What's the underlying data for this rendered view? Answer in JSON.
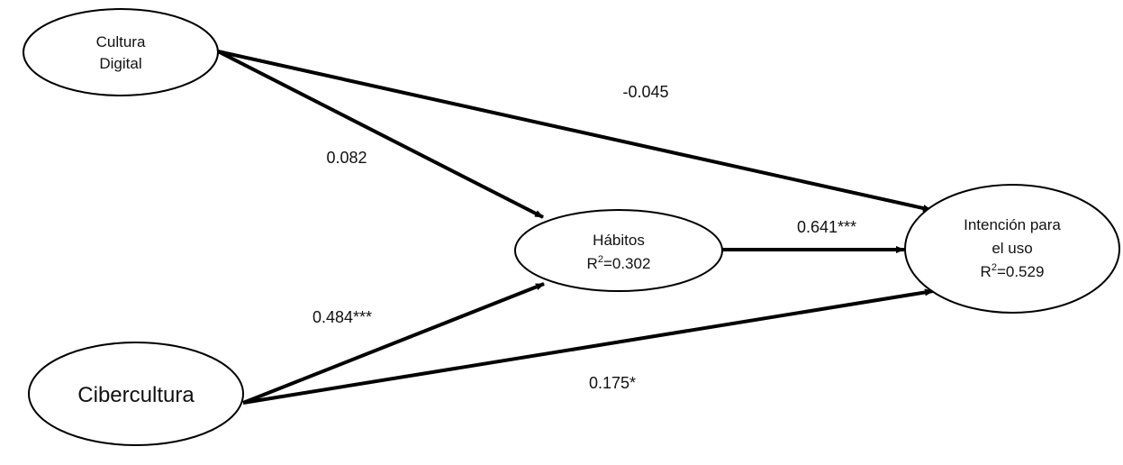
{
  "nodes": {
    "cultura_digital": {
      "line1": "Cultura",
      "line2": "Digital"
    },
    "cibercultura": {
      "line1": "Cibercultura"
    },
    "habitos": {
      "line1": "Hábitos",
      "r2_prefix": "R",
      "r2_sup": "2",
      "r2_value": "=0.302"
    },
    "intencion": {
      "line1": "Intención para",
      "line2": "el uso",
      "r2_prefix": "R",
      "r2_sup": "2",
      "r2_value": "=0.529"
    }
  },
  "paths": {
    "cultura_to_intencion": "-0.045",
    "cultura_to_habitos": "0.082",
    "habitos_to_intencion": "0.641***",
    "cibercultura_to_habitos": "0.484***",
    "cibercultura_to_intencion": "0.175*"
  },
  "colors": {
    "line": "#000000",
    "text": "#111111",
    "background": "#ffffff"
  }
}
